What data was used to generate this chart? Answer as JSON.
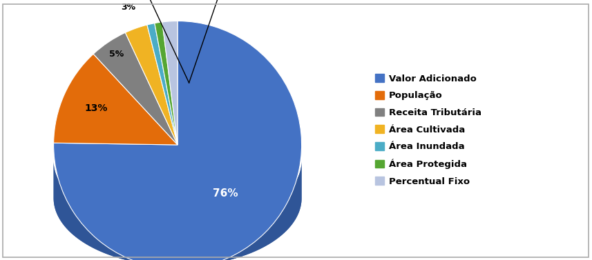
{
  "labels": [
    "Valor Adicionado",
    "População",
    "Receita Tributária",
    "Área Cultivada",
    "Área Inundada",
    "Área Protegida",
    "Percentual Fixo"
  ],
  "values": [
    76,
    13,
    5,
    3,
    1,
    1,
    2
  ],
  "colors": [
    "#4472C4",
    "#E36C0A",
    "#808080",
    "#F0B323",
    "#4BACC6",
    "#55A632",
    "#B8C4E0"
  ],
  "dark_colors": [
    "#2F5597",
    "#C55A00",
    "#595959",
    "#BF8F00",
    "#2E75B6",
    "#375623",
    "#8496B8"
  ],
  "bg_color": "#FFFFFF",
  "pct_labels_inner": [
    "76%",
    "13%",
    "5%",
    "3%"
  ],
  "depth": 0.18,
  "startangle": 90,
  "legend_labels": [
    "Valor Adicionado",
    "População",
    "Receita Tributária",
    "Área Cultivada",
    "Área Inundada",
    "Área Protegida",
    "Percentual Fixo"
  ]
}
